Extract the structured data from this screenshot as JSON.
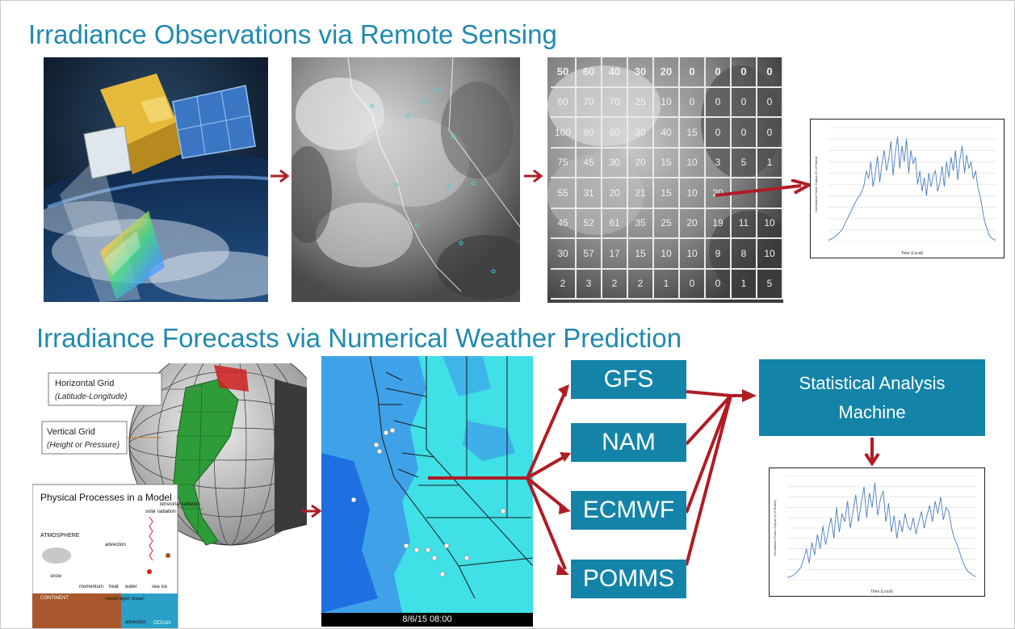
{
  "headings": {
    "observations": "Irradiance Observations via Remote Sensing",
    "forecasts": "Irradiance Forecasts via Numerical Weather Prediction"
  },
  "satellite_grid": {
    "rows": [
      [
        "50",
        "60",
        "40",
        "30",
        "20",
        "0",
        "0",
        "0",
        "0"
      ],
      [
        "60",
        "70",
        "70",
        "25",
        "10",
        "0",
        "0",
        "0",
        "0"
      ],
      [
        "100",
        "80",
        "60",
        "30",
        "40",
        "15",
        "0",
        "0",
        "0"
      ],
      [
        "75",
        "45",
        "30",
        "20",
        "15",
        "10",
        "3",
        "5",
        "1"
      ],
      [
        "55",
        "31",
        "20",
        "21",
        "15",
        "10",
        "20",
        "",
        ""
      ],
      [
        "45",
        "52",
        "61",
        "35",
        "25",
        "20",
        "19",
        "11",
        "10"
      ],
      [
        "30",
        "57",
        "17",
        "15",
        "10",
        "10",
        "9",
        "8",
        "10"
      ],
      [
        "2",
        "3",
        "2",
        "2",
        "1",
        "0",
        "0",
        "1",
        "5"
      ]
    ]
  },
  "model_diagram": {
    "horizontal_grid": "Horizontal Grid",
    "horizontal_grid_sub": "(Latitude-Longitude)",
    "vertical_grid": "Vertical Grid",
    "vertical_grid_sub": "(Height or Pressure)",
    "physical_processes": "Physical Processes in a Model",
    "atmosphere": "ATMOSPHERE",
    "continent": "CONTINENT",
    "ocean": "OCEAN",
    "advection": "advection",
    "momentum": "momentum",
    "heat": "heat",
    "water": "water",
    "snow": "snow",
    "solar_radiation": "solar radiation",
    "terrestrial_radiation": "terrestrial radiation",
    "sea_ice": "sea ice",
    "mixed_layer_ocean": "mixed layer ocean"
  },
  "nwp_map": {
    "timestamp": "8/6/15 08:00"
  },
  "models": [
    "GFS",
    "NAM",
    "ECMWF",
    "POMMS"
  ],
  "analysis_box": "Statistical Analysis Machine",
  "colors": {
    "heading": "#1f8ab0",
    "box": "#1384a8",
    "arrow": "#b01c24",
    "map_deep": "#1e6fe0",
    "map_mid": "#3fa2e8",
    "map_light": "#3fe0e6",
    "series": "#4a7cc0"
  },
  "chart_data": [
    {
      "type": "line",
      "title": "",
      "xlabel": "Time (Local)",
      "ylabel": "Normalized Power Output (% of Rated)",
      "ylim": [
        0,
        100
      ],
      "values": [
        1,
        2,
        3,
        4,
        6,
        8,
        10,
        14,
        18,
        22,
        26,
        30,
        34,
        38,
        40,
        44,
        50,
        62,
        55,
        70,
        48,
        60,
        75,
        52,
        68,
        80,
        62,
        72,
        88,
        58,
        78,
        92,
        64,
        84,
        70,
        90,
        60,
        80,
        68,
        74,
        50,
        62,
        44,
        56,
        40,
        60,
        48,
        58,
        62,
        44,
        52,
        66,
        48,
        70,
        56,
        74,
        62,
        80,
        54,
        72,
        84,
        60,
        76,
        64,
        70,
        55,
        62,
        48,
        40,
        30,
        18,
        12,
        6,
        3,
        2,
        1
      ]
    },
    {
      "type": "line",
      "title": "",
      "xlabel": "Time (Local)",
      "ylabel": "Normalized Power Output (% of Rated)",
      "ylim": [
        0,
        100
      ],
      "values": [
        2,
        3,
        4,
        6,
        9,
        12,
        20,
        30,
        16,
        36,
        24,
        44,
        30,
        52,
        34,
        48,
        60,
        40,
        70,
        46,
        64,
        56,
        76,
        50,
        66,
        82,
        56,
        74,
        90,
        60,
        84,
        70,
        94,
        62,
        78,
        86,
        56,
        74,
        46,
        62,
        40,
        58,
        46,
        64,
        52,
        48,
        60,
        44,
        56,
        66,
        50,
        62,
        72,
        56,
        76,
        64,
        80,
        58,
        70,
        66,
        50,
        40,
        34,
        26,
        18,
        12,
        8,
        6,
        4,
        3
      ]
    }
  ]
}
